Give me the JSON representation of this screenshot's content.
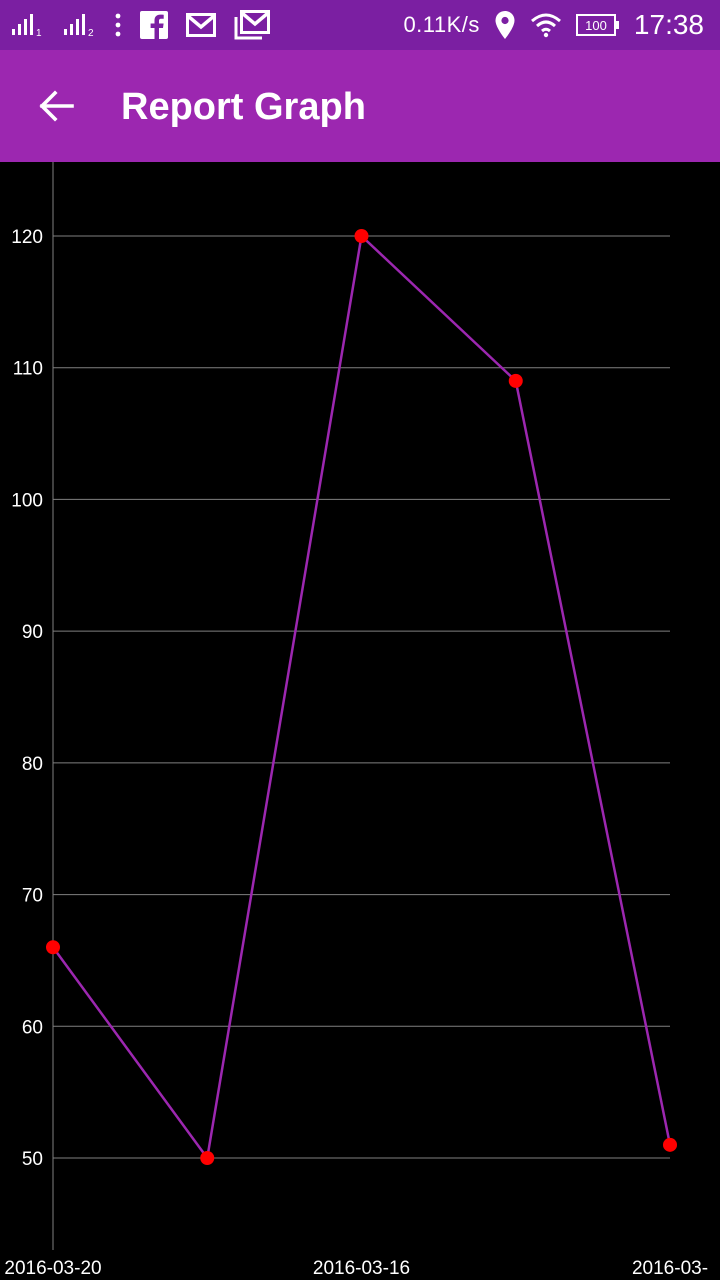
{
  "status_bar": {
    "sim1_label": "1",
    "sim2_label": "2",
    "net_speed": "0.11K/s",
    "battery": "100",
    "time": "17:38",
    "icons": [
      "signal-sim1-icon",
      "signal-sim2-icon",
      "more-dots-icon",
      "facebook-icon",
      "gmail-icon",
      "gmail-stack-icon",
      "location-icon",
      "wifi-icon",
      "battery-icon"
    ]
  },
  "app_bar": {
    "title": "Report Graph",
    "back_icon": "arrow-back-icon"
  },
  "colors": {
    "status_bar": "#7b1fa2",
    "app_bar": "#9c27b0",
    "line": "#9c27b0",
    "point": "#ff0000",
    "grid": "#808080",
    "background": "#000000"
  },
  "chart_data": {
    "type": "line",
    "x": [
      0,
      1,
      2,
      3,
      4
    ],
    "values": [
      66,
      50,
      120,
      109,
      51
    ],
    "x_tick_labels": [
      {
        "x": 0,
        "label": "2016-03-20"
      },
      {
        "x": 2,
        "label": "2016-03-16"
      },
      {
        "x": 4,
        "label": "2016-03-"
      }
    ],
    "y_ticks": [
      50,
      60,
      70,
      80,
      90,
      100,
      110,
      120
    ],
    "ylim": [
      43,
      126
    ],
    "grid": "horizontal",
    "legend": "none"
  }
}
